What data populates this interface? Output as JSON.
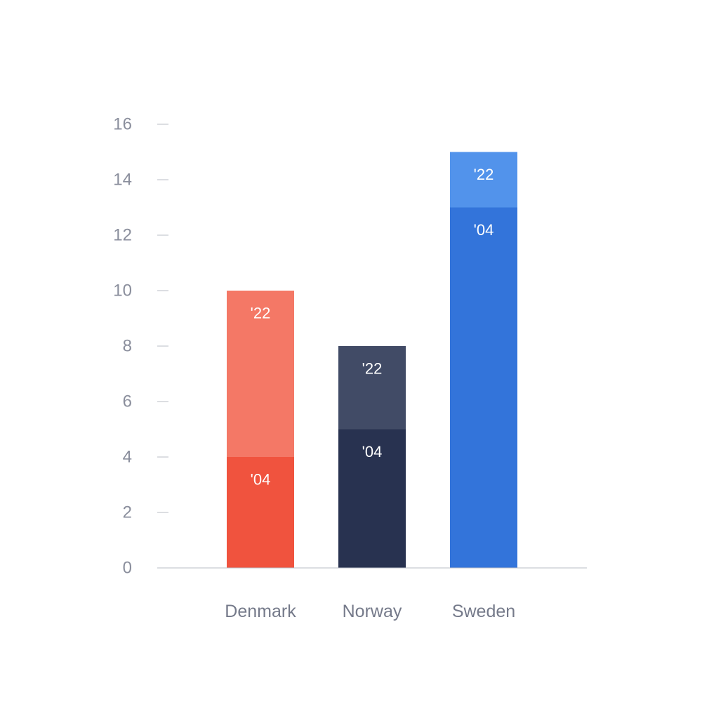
{
  "chart_data": {
    "type": "bar",
    "stacked": true,
    "categories": [
      "Denmark",
      "Norway",
      "Sweden"
    ],
    "ylim": [
      0,
      16
    ],
    "yticks": [
      0,
      2,
      4,
      6,
      8,
      10,
      12,
      14,
      16
    ],
    "grid": false,
    "bars": [
      {
        "category": "Denmark",
        "segments": [
          {
            "label": "'04",
            "value": 4,
            "color": "#f0533e"
          },
          {
            "label": "'22",
            "value": 6,
            "color": "#f47866"
          }
        ]
      },
      {
        "category": "Norway",
        "segments": [
          {
            "label": "'04",
            "value": 5,
            "color": "#283250"
          },
          {
            "label": "'22",
            "value": 3,
            "color": "#414b66"
          }
        ]
      },
      {
        "category": "Sweden",
        "segments": [
          {
            "label": "'04",
            "value": 13,
            "color": "#3374da"
          },
          {
            "label": "'22",
            "value": 2,
            "color": "#5293eb"
          }
        ]
      }
    ],
    "colors": {
      "axis": "#b9bcc6",
      "tick_text": "#8a8e9c",
      "category_text": "#757a8a",
      "segment_text": "#ffffff"
    }
  }
}
